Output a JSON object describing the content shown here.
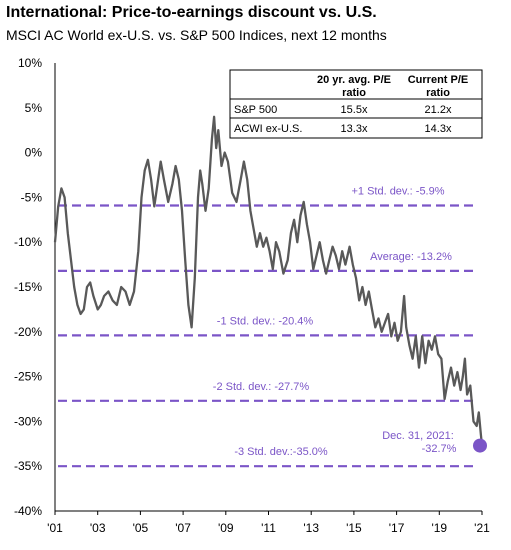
{
  "title": "International: Price-to-earnings discount vs. U.S.",
  "subtitle": "MSCI AC World ex-U.S. vs. S&P 500 Indices, next 12 months",
  "colors": {
    "series": "#595959",
    "reference": "#7b55c7",
    "endpoint": "#7b55c7",
    "axis": "#000000"
  },
  "table": {
    "headers": [
      "",
      "20 yr. avg. P/E ratio",
      "Current P/E ratio"
    ],
    "header_line1": [
      "20 yr. avg. P/E",
      "Current P/E"
    ],
    "header_line2": [
      "ratio",
      "ratio"
    ],
    "rows": [
      {
        "label": "S&P 500",
        "avg": "15.5x",
        "current": "21.2x"
      },
      {
        "label": "ACWI ex-U.S.",
        "avg": "13.3x",
        "current": "14.3x"
      }
    ]
  },
  "chart_data": {
    "type": "line",
    "title": "International: Price-to-earnings discount vs. U.S.",
    "subtitle": "MSCI AC World ex-U.S. vs. S&P 500 Indices, next 12 months",
    "xlabel": "",
    "ylabel": "",
    "xlim": [
      2001,
      2021
    ],
    "ylim": [
      -40,
      10
    ],
    "x_tick_labels": [
      "'01",
      "'03",
      "'05",
      "'07",
      "'09",
      "'11",
      "'13",
      "'15",
      "'17",
      "'19",
      "'21"
    ],
    "x_ticks": [
      2001,
      2003,
      2005,
      2007,
      2009,
      2011,
      2013,
      2015,
      2017,
      2019,
      2021
    ],
    "y_tick_labels": [
      "10%",
      "5%",
      "0%",
      "-5%",
      "-10%",
      "-15%",
      "-20%",
      "-25%",
      "-30%",
      "-35%",
      "-40%"
    ],
    "y_ticks": [
      10,
      5,
      0,
      -5,
      -10,
      -15,
      -20,
      -25,
      -30,
      -35,
      -40
    ],
    "grid": false,
    "reference_lines": [
      {
        "label": "+1 Std. dev.: -5.9%",
        "y": -5.9
      },
      {
        "label": "Average: -13.2%",
        "y": -13.2
      },
      {
        "label": "-1 Std. dev.: -20.4%",
        "y": -20.4
      },
      {
        "label": "-2 Std. dev.: -27.7%",
        "y": -27.7
      },
      {
        "label": "-3 Std. dev.:-35.0%",
        "y": -35.0
      }
    ],
    "annotation": {
      "line1": "Dec. 31, 2021:",
      "line2": "-32.7%",
      "x": 2021.0,
      "y": -32.7
    },
    "series": [
      {
        "values": [
          [
            2001.0,
            -10.0
          ],
          [
            2001.15,
            -6.0
          ],
          [
            2001.3,
            -4.0
          ],
          [
            2001.45,
            -5.0
          ],
          [
            2001.6,
            -9.0
          ],
          [
            2001.75,
            -12.0
          ],
          [
            2001.9,
            -15.0
          ],
          [
            2002.05,
            -17.0
          ],
          [
            2002.2,
            -18.0
          ],
          [
            2002.35,
            -17.5
          ],
          [
            2002.5,
            -15.0
          ],
          [
            2002.65,
            -14.5
          ],
          [
            2002.8,
            -16.0
          ],
          [
            2003.0,
            -17.5
          ],
          [
            2003.15,
            -17.0
          ],
          [
            2003.3,
            -16.0
          ],
          [
            2003.5,
            -15.5
          ],
          [
            2003.7,
            -16.5
          ],
          [
            2003.9,
            -17.0
          ],
          [
            2004.1,
            -15.0
          ],
          [
            2004.3,
            -15.5
          ],
          [
            2004.5,
            -17.0
          ],
          [
            2004.7,
            -15.5
          ],
          [
            2004.9,
            -11.0
          ],
          [
            2005.05,
            -5.0
          ],
          [
            2005.2,
            -2.0
          ],
          [
            2005.35,
            -0.8
          ],
          [
            2005.5,
            -3.0
          ],
          [
            2005.65,
            -6.0
          ],
          [
            2005.8,
            -3.5
          ],
          [
            2005.95,
            -1.0
          ],
          [
            2006.1,
            -3.0
          ],
          [
            2006.3,
            -5.5
          ],
          [
            2006.5,
            -3.5
          ],
          [
            2006.65,
            -1.5
          ],
          [
            2006.8,
            -3.0
          ],
          [
            2006.95,
            -6.5
          ],
          [
            2007.1,
            -12.0
          ],
          [
            2007.25,
            -17.0
          ],
          [
            2007.4,
            -19.5
          ],
          [
            2007.55,
            -14.0
          ],
          [
            2007.7,
            -5.0
          ],
          [
            2007.8,
            -2.0
          ],
          [
            2007.9,
            -3.5
          ],
          [
            2008.05,
            -6.5
          ],
          [
            2008.2,
            -4.0
          ],
          [
            2008.35,
            1.5
          ],
          [
            2008.45,
            4.0
          ],
          [
            2008.55,
            0.5
          ],
          [
            2008.65,
            2.5
          ],
          [
            2008.8,
            -1.5
          ],
          [
            2008.95,
            0.0
          ],
          [
            2009.1,
            -1.0
          ],
          [
            2009.3,
            -4.5
          ],
          [
            2009.5,
            -5.5
          ],
          [
            2009.7,
            -3.0
          ],
          [
            2009.85,
            -1.0
          ],
          [
            2010.0,
            -3.0
          ],
          [
            2010.15,
            -6.5
          ],
          [
            2010.3,
            -8.5
          ],
          [
            2010.45,
            -10.5
          ],
          [
            2010.6,
            -9.0
          ],
          [
            2010.75,
            -10.5
          ],
          [
            2010.9,
            -9.5
          ],
          [
            2011.05,
            -11.0
          ],
          [
            2011.2,
            -13.0
          ],
          [
            2011.35,
            -10.0
          ],
          [
            2011.5,
            -11.0
          ],
          [
            2011.7,
            -13.5
          ],
          [
            2011.9,
            -12.0
          ],
          [
            2012.05,
            -9.0
          ],
          [
            2012.2,
            -7.5
          ],
          [
            2012.35,
            -10.0
          ],
          [
            2012.5,
            -7.0
          ],
          [
            2012.65,
            -5.5
          ],
          [
            2012.8,
            -8.0
          ],
          [
            2012.95,
            -10.0
          ],
          [
            2013.1,
            -13.0
          ],
          [
            2013.25,
            -11.5
          ],
          [
            2013.4,
            -10.0
          ],
          [
            2013.55,
            -12.0
          ],
          [
            2013.7,
            -13.5
          ],
          [
            2013.85,
            -12.0
          ],
          [
            2014.0,
            -10.5
          ],
          [
            2014.15,
            -11.5
          ],
          [
            2014.3,
            -13.0
          ],
          [
            2014.45,
            -11.0
          ],
          [
            2014.6,
            -12.5
          ],
          [
            2014.8,
            -10.5
          ],
          [
            2014.95,
            -12.5
          ],
          [
            2015.1,
            -14.0
          ],
          [
            2015.25,
            -16.5
          ],
          [
            2015.4,
            -15.0
          ],
          [
            2015.55,
            -17.0
          ],
          [
            2015.7,
            -15.5
          ],
          [
            2015.85,
            -17.5
          ],
          [
            2016.0,
            -19.5
          ],
          [
            2016.15,
            -18.5
          ],
          [
            2016.3,
            -20.0
          ],
          [
            2016.45,
            -19.0
          ],
          [
            2016.6,
            -18.0
          ],
          [
            2016.75,
            -20.5
          ],
          [
            2016.9,
            -19.0
          ],
          [
            2017.05,
            -21.0
          ],
          [
            2017.2,
            -20.0
          ],
          [
            2017.35,
            -16.0
          ],
          [
            2017.45,
            -19.5
          ],
          [
            2017.6,
            -21.5
          ],
          [
            2017.75,
            -23.0
          ],
          [
            2017.9,
            -20.5
          ],
          [
            2018.05,
            -24.0
          ],
          [
            2018.2,
            -20.5
          ],
          [
            2018.35,
            -23.5
          ],
          [
            2018.5,
            -21.0
          ],
          [
            2018.65,
            -22.0
          ],
          [
            2018.8,
            -20.5
          ],
          [
            2018.95,
            -22.5
          ],
          [
            2019.1,
            -23.0
          ],
          [
            2019.25,
            -27.5
          ],
          [
            2019.4,
            -25.5
          ],
          [
            2019.55,
            -24.0
          ],
          [
            2019.7,
            -26.0
          ],
          [
            2019.85,
            -24.5
          ],
          [
            2020.0,
            -26.5
          ],
          [
            2020.1,
            -25.0
          ],
          [
            2020.2,
            -23.0
          ],
          [
            2020.3,
            -27.0
          ],
          [
            2020.45,
            -26.0
          ],
          [
            2020.6,
            -30.0
          ],
          [
            2020.75,
            -30.5
          ],
          [
            2020.85,
            -29.0
          ],
          [
            2020.95,
            -31.5
          ],
          [
            2021.0,
            -32.7
          ]
        ]
      }
    ]
  }
}
